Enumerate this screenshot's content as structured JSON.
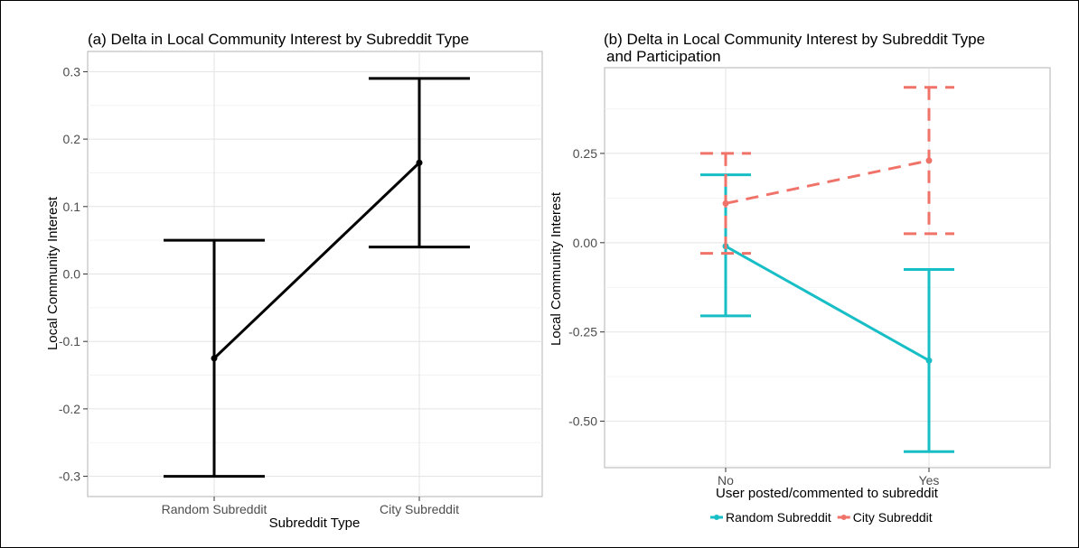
{
  "chart_data": [
    {
      "type": "line",
      "title": "(a) Delta in Local Community Interest by Subreddit Type",
      "xlabel": "Subreddit Type",
      "ylabel": "Local Community Interest",
      "categories": [
        "Random Subreddit",
        "City Subreddit"
      ],
      "ylim": [
        -0.33,
        0.33
      ],
      "yticks": [
        -0.3,
        -0.2,
        -0.1,
        0.0,
        0.1,
        0.2,
        0.3
      ],
      "ytick_labels": [
        "-0.3",
        "-0.2",
        "-0.1",
        "0.0",
        "0.1",
        "0.2",
        "0.3"
      ],
      "grid": true,
      "series": [
        {
          "values": [
            -0.125,
            0.165
          ],
          "lower": [
            -0.3,
            0.04
          ],
          "upper": [
            0.05,
            0.29
          ],
          "color": "#000000"
        }
      ]
    },
    {
      "type": "line",
      "title": "(b) Delta in Local Community Interest by Subreddit Type",
      "title_line2": "and Participation",
      "xlabel": "User posted/commented to subreddit",
      "ylabel": "Local Community Interest",
      "categories": [
        "No",
        "Yes"
      ],
      "ylim": [
        -0.63,
        0.49
      ],
      "yticks": [
        -0.5,
        -0.25,
        0.0,
        0.25
      ],
      "ytick_labels": [
        "-0.50",
        "-0.25",
        "0.00",
        "0.25"
      ],
      "grid": true,
      "legend_position": "bottom",
      "series": [
        {
          "name": "Random Subreddit",
          "values": [
            -0.01,
            -0.33
          ],
          "lower": [
            -0.205,
            -0.585
          ],
          "upper": [
            0.19,
            -0.075
          ],
          "color": "#17BEC6",
          "dash": "solid"
        },
        {
          "name": "City Subreddit",
          "values": [
            0.11,
            0.23
          ],
          "lower": [
            -0.03,
            0.025
          ],
          "upper": [
            0.25,
            0.435
          ],
          "color": "#F0736A",
          "dash": "dashed"
        }
      ]
    }
  ]
}
